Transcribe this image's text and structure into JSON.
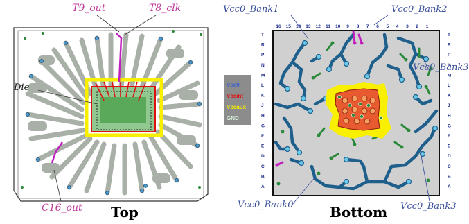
{
  "left_panel": {
    "caption": "Top",
    "labels": {
      "t9_out": "T9_out",
      "t8_clk": "T8_clk",
      "die": "Die",
      "c16_out": "C16_out"
    }
  },
  "legend": {
    "items": [
      {
        "label": "Vcc0",
        "color": "#3a5fd0"
      },
      {
        "label": "Vccint",
        "color": "#e01010"
      },
      {
        "label": "Vccaux",
        "color": "#f4f000"
      },
      {
        "label": "GND",
        "color": "#d8f0d8"
      }
    ]
  },
  "right_panel": {
    "caption": "Bottom",
    "labels": {
      "bank0": "Vcc0_Bank0",
      "bank1": "Vcc0_Bank1",
      "bank2": "Vcc0_Bank2",
      "bank3": "Vcc0_Bank3"
    },
    "column_numbers": [
      "16",
      "15",
      "14",
      "13",
      "12",
      "11",
      "10",
      "9",
      "8",
      "7",
      "6",
      "5",
      "4",
      "3",
      "2",
      "1"
    ],
    "row_letters": [
      "T",
      "R",
      "P",
      "N",
      "M",
      "L",
      "K",
      "J",
      "H",
      "G",
      "F",
      "E",
      "D",
      "C",
      "B",
      "A"
    ]
  },
  "colors": {
    "board_fill": "#d0d0d0",
    "trace_gray": "#a8b0a8",
    "vcco_trace": "#1e5f8c",
    "gnd_dot": "#2a8a3a",
    "vccint": "#e54020",
    "vccaux": "#f8f000",
    "special_trace": "#c020c0"
  }
}
